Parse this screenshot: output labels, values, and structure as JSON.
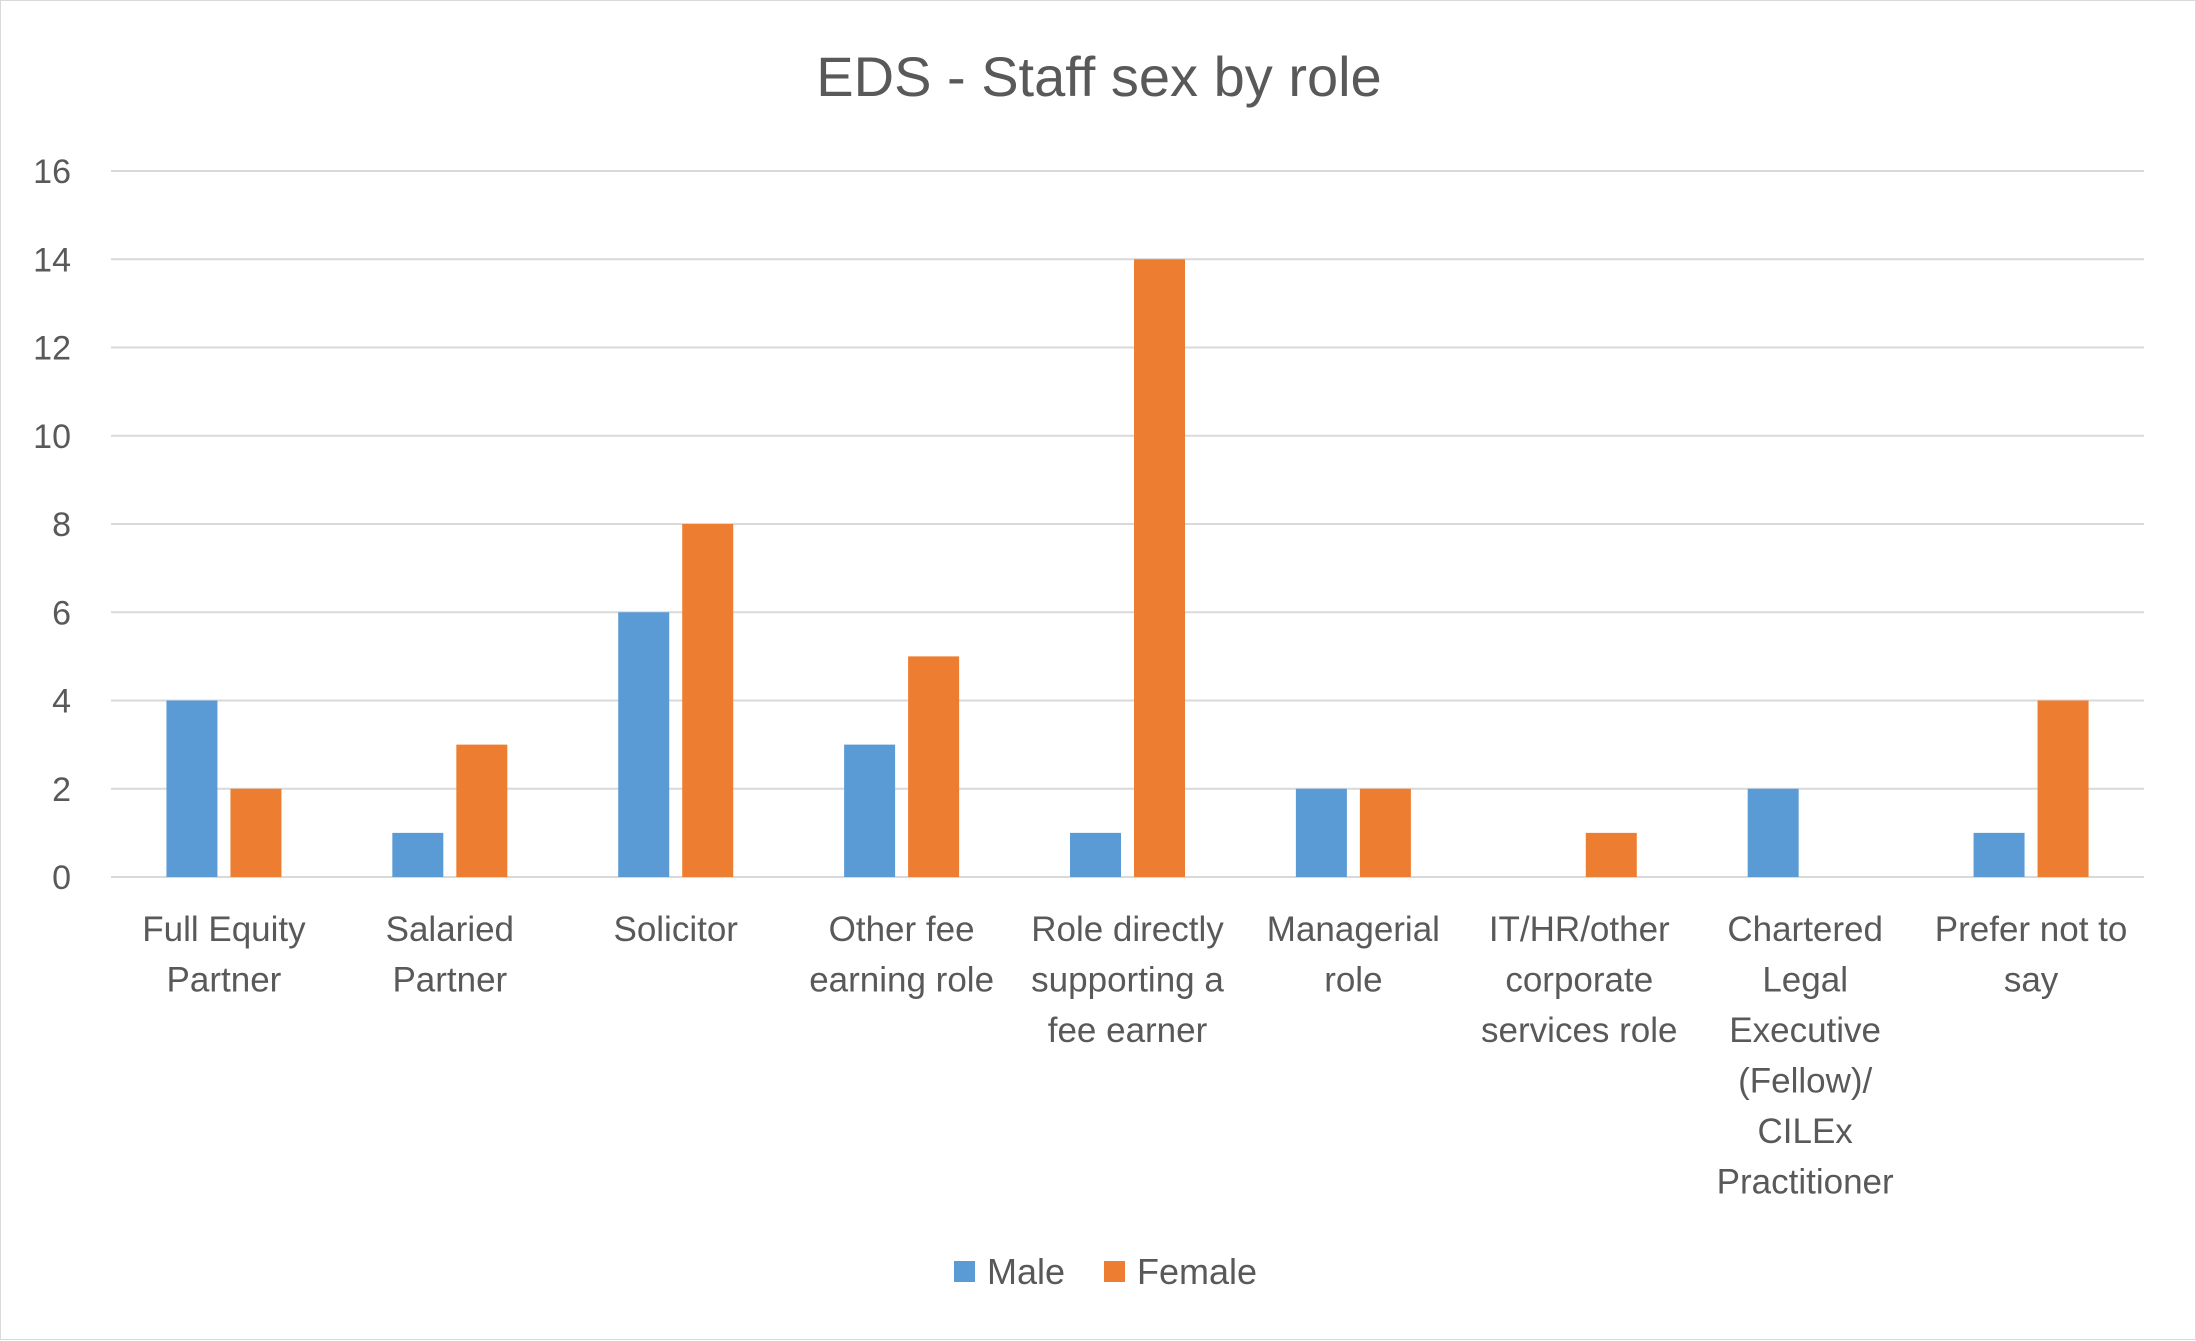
{
  "chart_data": {
    "type": "bar",
    "title": "EDS - Staff sex by role",
    "xlabel": "",
    "ylabel": "",
    "ylim": [
      0,
      16
    ],
    "yticks": [
      0,
      2,
      4,
      6,
      8,
      10,
      12,
      14,
      16
    ],
    "grid": true,
    "legend_position": "bottom",
    "categories": [
      [
        "Full Equity",
        "Partner"
      ],
      [
        "Salaried",
        "Partner"
      ],
      [
        "Solicitor"
      ],
      [
        "Other fee",
        "earning role"
      ],
      [
        "Role directly",
        "supporting a",
        "fee earner"
      ],
      [
        "Managerial",
        "role"
      ],
      [
        "IT/HR/other",
        "corporate",
        "services role"
      ],
      [
        "Chartered",
        "Legal",
        "Executive",
        "(Fellow)/",
        "CILEx",
        "Practitioner"
      ],
      [
        "Prefer not to",
        "say"
      ]
    ],
    "series": [
      {
        "name": "Male",
        "color": "#5b9bd5",
        "values": [
          4,
          1,
          6,
          3,
          1,
          2,
          0,
          2,
          1
        ]
      },
      {
        "name": "Female",
        "color": "#ed7d31",
        "values": [
          2,
          3,
          8,
          5,
          14,
          2,
          1,
          0,
          4
        ]
      }
    ],
    "gridline_color": "#d9d9d9",
    "text_color": "#595959"
  }
}
